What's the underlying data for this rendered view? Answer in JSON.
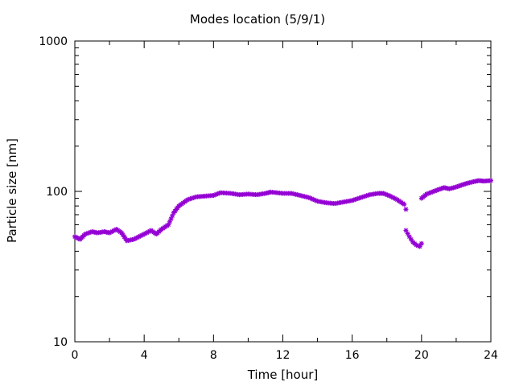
{
  "chart_data": {
    "type": "scatter",
    "title": "Modes location (5/9/1)",
    "xlabel": "Time [hour]",
    "ylabel": "Particle size [nm]",
    "xlim": [
      0,
      24
    ],
    "ylim": [
      10,
      1000
    ],
    "yscale": "log",
    "grid": false,
    "legend": "none",
    "x_ticks": [
      0,
      4,
      8,
      12,
      16,
      20,
      24
    ],
    "x_tick_labels": [
      "0",
      "4",
      "8",
      "12",
      "16",
      "20",
      "24"
    ],
    "y_ticks": [
      10,
      100,
      1000
    ],
    "y_tick_labels": [
      "10",
      "100",
      "1000"
    ],
    "marker_color": "#9400d3",
    "marker": "star",
    "series": [
      {
        "anchors": [
          [
            0.0,
            50
          ],
          [
            0.3,
            48
          ],
          [
            0.6,
            52
          ],
          [
            1.0,
            54
          ],
          [
            1.3,
            53
          ],
          [
            1.7,
            54
          ],
          [
            2.0,
            53
          ],
          [
            2.4,
            56
          ],
          [
            2.7,
            53
          ],
          [
            3.0,
            47
          ],
          [
            3.4,
            48
          ],
          [
            3.7,
            50
          ],
          [
            4.0,
            52
          ],
          [
            4.4,
            55
          ],
          [
            4.7,
            52
          ],
          [
            5.0,
            56
          ],
          [
            5.4,
            60
          ],
          [
            5.7,
            72
          ],
          [
            6.0,
            80
          ],
          [
            6.5,
            88
          ],
          [
            7.0,
            92
          ],
          [
            7.5,
            93
          ],
          [
            8.0,
            94
          ],
          [
            8.4,
            98
          ],
          [
            9.0,
            97
          ],
          [
            9.5,
            95
          ],
          [
            10.0,
            96
          ],
          [
            10.5,
            95
          ],
          [
            11.0,
            97
          ],
          [
            11.3,
            99
          ],
          [
            12.0,
            97
          ],
          [
            12.5,
            97
          ],
          [
            13.0,
            94
          ],
          [
            13.5,
            91
          ],
          [
            14.0,
            86
          ],
          [
            14.5,
            84
          ],
          [
            15.0,
            83
          ],
          [
            15.5,
            85
          ],
          [
            16.0,
            87
          ],
          [
            16.5,
            91
          ],
          [
            17.0,
            95
          ],
          [
            17.5,
            97
          ],
          [
            17.8,
            97
          ],
          [
            18.2,
            93
          ],
          [
            18.6,
            88
          ],
          [
            19.0,
            82
          ],
          [
            19.1,
            76
          ]
        ]
      },
      {
        "anchors": [
          [
            19.1,
            55
          ],
          [
            19.3,
            50
          ],
          [
            19.5,
            46
          ],
          [
            19.7,
            44
          ],
          [
            19.9,
            43
          ],
          [
            20.0,
            45
          ]
        ]
      },
      {
        "anchors": [
          [
            20.0,
            90
          ],
          [
            20.3,
            96
          ],
          [
            20.7,
            100
          ],
          [
            21.0,
            103
          ],
          [
            21.3,
            106
          ],
          [
            21.6,
            104
          ],
          [
            22.0,
            107
          ],
          [
            22.3,
            110
          ],
          [
            22.6,
            113
          ],
          [
            23.0,
            116
          ],
          [
            23.3,
            118
          ],
          [
            23.6,
            117
          ],
          [
            24.0,
            118
          ]
        ]
      }
    ]
  }
}
